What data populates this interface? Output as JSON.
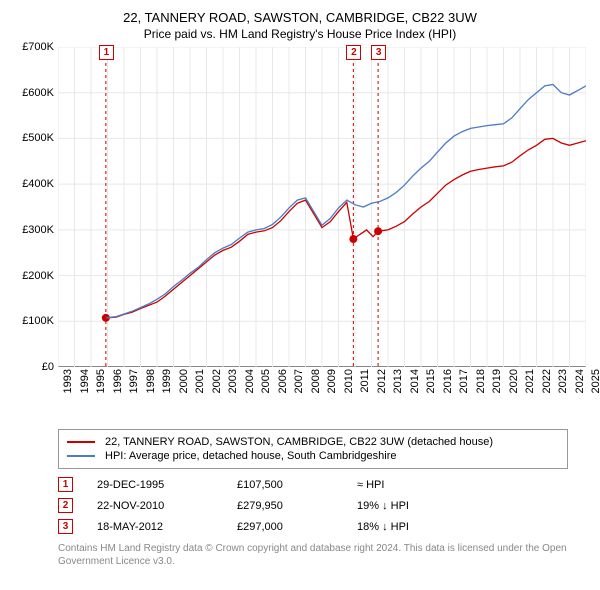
{
  "title": "22, TANNERY ROAD, SAWSTON, CAMBRIDGE, CB22 3UW",
  "subtitle": "Price paid vs. HM Land Registry's House Price Index (HPI)",
  "chart": {
    "type": "line",
    "background_color": "#ffffff",
    "grid_color": "#e8e8e8",
    "axis_color": "#888888",
    "label_fontsize": 11,
    "title_fontsize": 13,
    "xlim": [
      1993,
      2025
    ],
    "ylim": [
      0,
      700000
    ],
    "ytick_step": 100000,
    "yticks": [
      "£0",
      "£100K",
      "£200K",
      "£300K",
      "£400K",
      "£500K",
      "£600K",
      "£700K"
    ],
    "xticks": [
      1993,
      1994,
      1995,
      1996,
      1997,
      1998,
      1999,
      2000,
      2001,
      2002,
      2003,
      2004,
      2005,
      2006,
      2007,
      2008,
      2009,
      2010,
      2011,
      2012,
      2013,
      2014,
      2015,
      2016,
      2017,
      2018,
      2019,
      2020,
      2021,
      2022,
      2023,
      2024,
      2025
    ],
    "series": [
      {
        "name": "property",
        "label": "22, TANNERY ROAD, SAWSTON, CAMBRIDGE, CB22 3UW (detached house)",
        "color": "#cc0000",
        "line_width": 1.3,
        "data": [
          [
            1995.9,
            107500
          ],
          [
            1996.5,
            109000
          ],
          [
            1997,
            115000
          ],
          [
            1997.5,
            120000
          ],
          [
            1998,
            128000
          ],
          [
            1998.5,
            135000
          ],
          [
            1999,
            142000
          ],
          [
            1999.5,
            155000
          ],
          [
            2000,
            170000
          ],
          [
            2000.5,
            185000
          ],
          [
            2001,
            200000
          ],
          [
            2001.5,
            215000
          ],
          [
            2002,
            230000
          ],
          [
            2002.5,
            245000
          ],
          [
            2003,
            255000
          ],
          [
            2003.5,
            262000
          ],
          [
            2004,
            275000
          ],
          [
            2004.5,
            290000
          ],
          [
            2005,
            295000
          ],
          [
            2005.5,
            298000
          ],
          [
            2006,
            305000
          ],
          [
            2006.5,
            320000
          ],
          [
            2007,
            340000
          ],
          [
            2007.5,
            358000
          ],
          [
            2008,
            365000
          ],
          [
            2008.5,
            335000
          ],
          [
            2009,
            305000
          ],
          [
            2009.5,
            318000
          ],
          [
            2010,
            340000
          ],
          [
            2010.5,
            360000
          ],
          [
            2010.9,
            279950
          ],
          [
            2011.3,
            290000
          ],
          [
            2011.7,
            300000
          ],
          [
            2012.1,
            285000
          ],
          [
            2012.4,
            297000
          ],
          [
            2013,
            300000
          ],
          [
            2013.5,
            308000
          ],
          [
            2014,
            318000
          ],
          [
            2014.5,
            335000
          ],
          [
            2015,
            350000
          ],
          [
            2015.5,
            362000
          ],
          [
            2016,
            380000
          ],
          [
            2016.5,
            398000
          ],
          [
            2017,
            410000
          ],
          [
            2017.5,
            420000
          ],
          [
            2018,
            428000
          ],
          [
            2018.5,
            432000
          ],
          [
            2019,
            435000
          ],
          [
            2019.5,
            438000
          ],
          [
            2020,
            440000
          ],
          [
            2020.5,
            448000
          ],
          [
            2021,
            462000
          ],
          [
            2021.5,
            475000
          ],
          [
            2022,
            485000
          ],
          [
            2022.5,
            498000
          ],
          [
            2023,
            500000
          ],
          [
            2023.5,
            490000
          ],
          [
            2024,
            485000
          ],
          [
            2024.5,
            490000
          ],
          [
            2025,
            495000
          ]
        ]
      },
      {
        "name": "hpi",
        "label": "HPI: Average price, detached house, South Cambridgeshire",
        "color": "#4a7bc4",
        "line_width": 1.3,
        "data": [
          [
            1995.9,
            107500
          ],
          [
            1996.5,
            110000
          ],
          [
            1997,
            116000
          ],
          [
            1997.5,
            122000
          ],
          [
            1998,
            130000
          ],
          [
            1998.5,
            138000
          ],
          [
            1999,
            148000
          ],
          [
            1999.5,
            160000
          ],
          [
            2000,
            176000
          ],
          [
            2000.5,
            190000
          ],
          [
            2001,
            205000
          ],
          [
            2001.5,
            218000
          ],
          [
            2002,
            235000
          ],
          [
            2002.5,
            250000
          ],
          [
            2003,
            260000
          ],
          [
            2003.5,
            268000
          ],
          [
            2004,
            282000
          ],
          [
            2004.5,
            295000
          ],
          [
            2005,
            300000
          ],
          [
            2005.5,
            303000
          ],
          [
            2006,
            312000
          ],
          [
            2006.5,
            328000
          ],
          [
            2007,
            348000
          ],
          [
            2007.5,
            365000
          ],
          [
            2008,
            370000
          ],
          [
            2008.5,
            340000
          ],
          [
            2009,
            310000
          ],
          [
            2009.5,
            325000
          ],
          [
            2010,
            348000
          ],
          [
            2010.5,
            365000
          ],
          [
            2011,
            355000
          ],
          [
            2011.5,
            350000
          ],
          [
            2012,
            358000
          ],
          [
            2012.5,
            362000
          ],
          [
            2013,
            370000
          ],
          [
            2013.5,
            382000
          ],
          [
            2014,
            398000
          ],
          [
            2014.5,
            418000
          ],
          [
            2015,
            435000
          ],
          [
            2015.5,
            450000
          ],
          [
            2016,
            470000
          ],
          [
            2016.5,
            490000
          ],
          [
            2017,
            505000
          ],
          [
            2017.5,
            515000
          ],
          [
            2018,
            522000
          ],
          [
            2018.5,
            525000
          ],
          [
            2019,
            528000
          ],
          [
            2019.5,
            530000
          ],
          [
            2020,
            532000
          ],
          [
            2020.5,
            545000
          ],
          [
            2021,
            565000
          ],
          [
            2021.5,
            585000
          ],
          [
            2022,
            600000
          ],
          [
            2022.5,
            615000
          ],
          [
            2023,
            618000
          ],
          [
            2023.5,
            600000
          ],
          [
            2024,
            595000
          ],
          [
            2024.5,
            605000
          ],
          [
            2025,
            615000
          ]
        ]
      }
    ],
    "markers": [
      {
        "n": "1",
        "x": 1995.9,
        "y": 107500
      },
      {
        "n": "2",
        "x": 2010.9,
        "y": 279950
      },
      {
        "n": "3",
        "x": 2012.4,
        "y": 297000
      }
    ],
    "marker_vline_color": "#cc0000",
    "marker_vline_dash": "3,3",
    "marker_dot_color": "#cc0000",
    "marker_dot_radius": 4
  },
  "legend": {
    "rows": [
      {
        "color": "#cc0000",
        "label": "22, TANNERY ROAD, SAWSTON, CAMBRIDGE, CB22 3UW (detached house)"
      },
      {
        "color": "#4a7bc4",
        "label": "HPI: Average price, detached house, South Cambridgeshire"
      }
    ]
  },
  "sales": [
    {
      "n": "1",
      "date": "29-DEC-1995",
      "price": "£107,500",
      "delta": "≈ HPI"
    },
    {
      "n": "2",
      "date": "22-NOV-2010",
      "price": "£279,950",
      "delta": "19% ↓ HPI"
    },
    {
      "n": "3",
      "date": "18-MAY-2012",
      "price": "£297,000",
      "delta": "18% ↓ HPI"
    }
  ],
  "footnote": "Contains HM Land Registry data © Crown copyright and database right 2024. This data is licensed under the Open Government Licence v3.0."
}
